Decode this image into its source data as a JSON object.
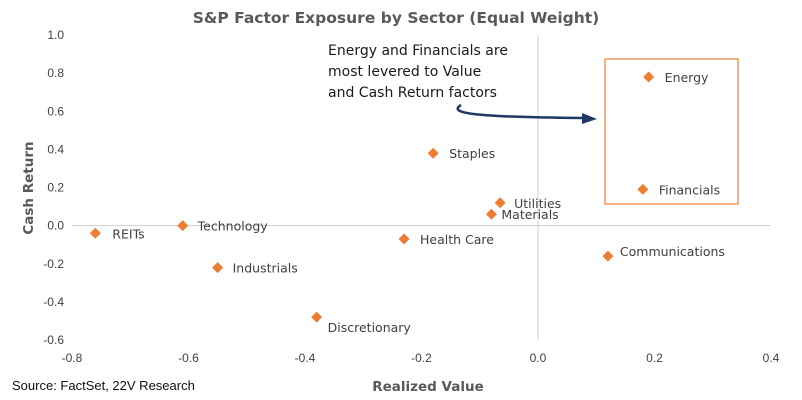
{
  "chart_data": {
    "type": "scatter",
    "title": "S&P Factor Exposure by Sector (Equal Weight)",
    "xlabel": "Realized Value",
    "ylabel": "Cash Return",
    "xlim": [
      -0.8,
      0.4
    ],
    "ylim": [
      -0.6,
      1.0
    ],
    "x_ticks": [
      "-0.8",
      "-0.6",
      "-0.4",
      "-0.2",
      "0.0",
      "0.2",
      "0.4"
    ],
    "y_ticks": [
      "1.0",
      "0.8",
      "0.6",
      "0.4",
      "0.2",
      "0.0",
      "-0.2",
      "-0.4",
      "-0.6"
    ],
    "grid": false,
    "marker_color": "#ED7D31",
    "highlight_box_color": "#ED7D31",
    "arrow_color": "#1F3864",
    "points": [
      {
        "label": "Energy",
        "x": 0.19,
        "y": 0.78
      },
      {
        "label": "Financials",
        "x": 0.18,
        "y": 0.19
      },
      {
        "label": "Staples",
        "x": -0.18,
        "y": 0.38
      },
      {
        "label": "Utilities",
        "x": -0.065,
        "y": 0.12
      },
      {
        "label": "Materials",
        "x": -0.08,
        "y": 0.06
      },
      {
        "label": "Technology",
        "x": -0.61,
        "y": 0.0
      },
      {
        "label": "REITs",
        "x": -0.76,
        "y": -0.04
      },
      {
        "label": "Health Care",
        "x": -0.23,
        "y": -0.07
      },
      {
        "label": "Industrials",
        "x": -0.55,
        "y": -0.22
      },
      {
        "label": "Communications",
        "x": 0.12,
        "y": -0.16
      },
      {
        "label": "Discretionary",
        "x": -0.38,
        "y": -0.48
      }
    ],
    "annotation": [
      "Energy and Financials are",
      "most levered to Value",
      "and Cash Return factors"
    ]
  },
  "source": "Source: FactSet, 22V Research"
}
